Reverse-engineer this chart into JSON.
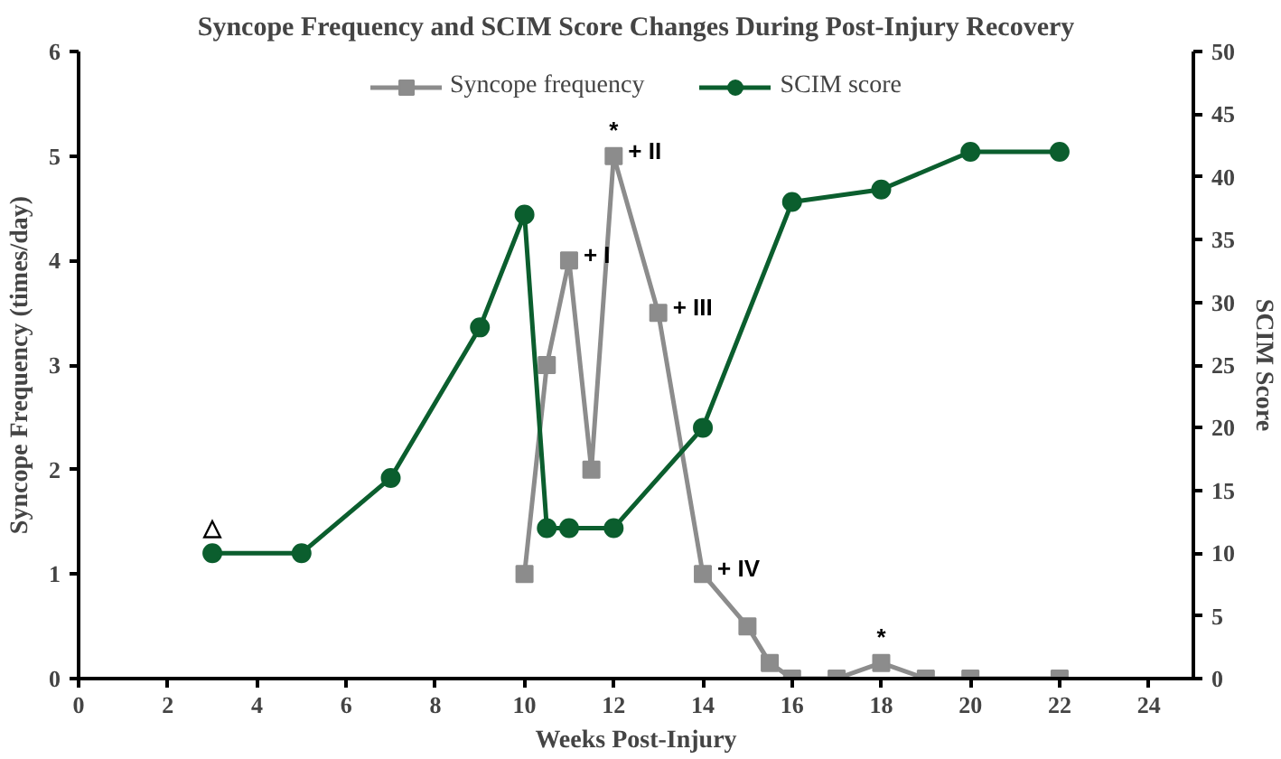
{
  "chart_data": {
    "type": "line",
    "title": "Syncope Frequency and SCIM Score Changes During Post-Injury Recovery",
    "xlabel": "Weeks Post-Injury",
    "ylabel": "Syncope Frequency (times/day)",
    "y2label": "SCIM Score",
    "xlim": [
      0,
      25
    ],
    "xticks": [
      0,
      2,
      4,
      6,
      8,
      10,
      12,
      14,
      16,
      18,
      20,
      22,
      24
    ],
    "ylim": [
      0,
      6
    ],
    "yticks": [
      0,
      1,
      2,
      3,
      4,
      5,
      6
    ],
    "y2lim": [
      0,
      50
    ],
    "y2ticks": [
      0,
      5,
      10,
      15,
      20,
      25,
      30,
      35,
      40,
      45,
      50
    ],
    "series": [
      {
        "name": "Syncope frequency",
        "color": "#8c8c8c",
        "marker": "square",
        "x": [
          10,
          10.5,
          11,
          11.5,
          12,
          13,
          14,
          15,
          15.5,
          16,
          17,
          18,
          19,
          20,
          22
        ],
        "values": [
          1,
          3,
          4,
          2,
          5,
          3.5,
          1,
          0.5,
          0.15,
          0,
          0,
          0.15,
          0,
          0,
          0
        ]
      },
      {
        "name": "SCIM score",
        "color": "#0b5e2e",
        "marker": "circle",
        "axis": "y2",
        "x": [
          3,
          5,
          7,
          9,
          10,
          10.5,
          11,
          12,
          14,
          16,
          18,
          20,
          22
        ],
        "values": [
          10,
          10,
          16,
          28,
          37,
          12,
          12,
          12,
          20,
          38,
          39,
          42,
          42
        ]
      }
    ],
    "annotations": [
      {
        "text": "△",
        "x": 3,
        "y": 1.2
      },
      {
        "text": "*",
        "x": 12,
        "y": 5
      },
      {
        "text": "+ II",
        "x": 12,
        "y": 5
      },
      {
        "text": "+ I",
        "x": 11,
        "y": 4
      },
      {
        "text": "+ III",
        "x": 13,
        "y": 3.5
      },
      {
        "text": "+ IV",
        "x": 14,
        "y": 1
      },
      {
        "text": "*",
        "x": 18,
        "y": 0.15
      }
    ],
    "legend": "top",
    "grid": false
  }
}
